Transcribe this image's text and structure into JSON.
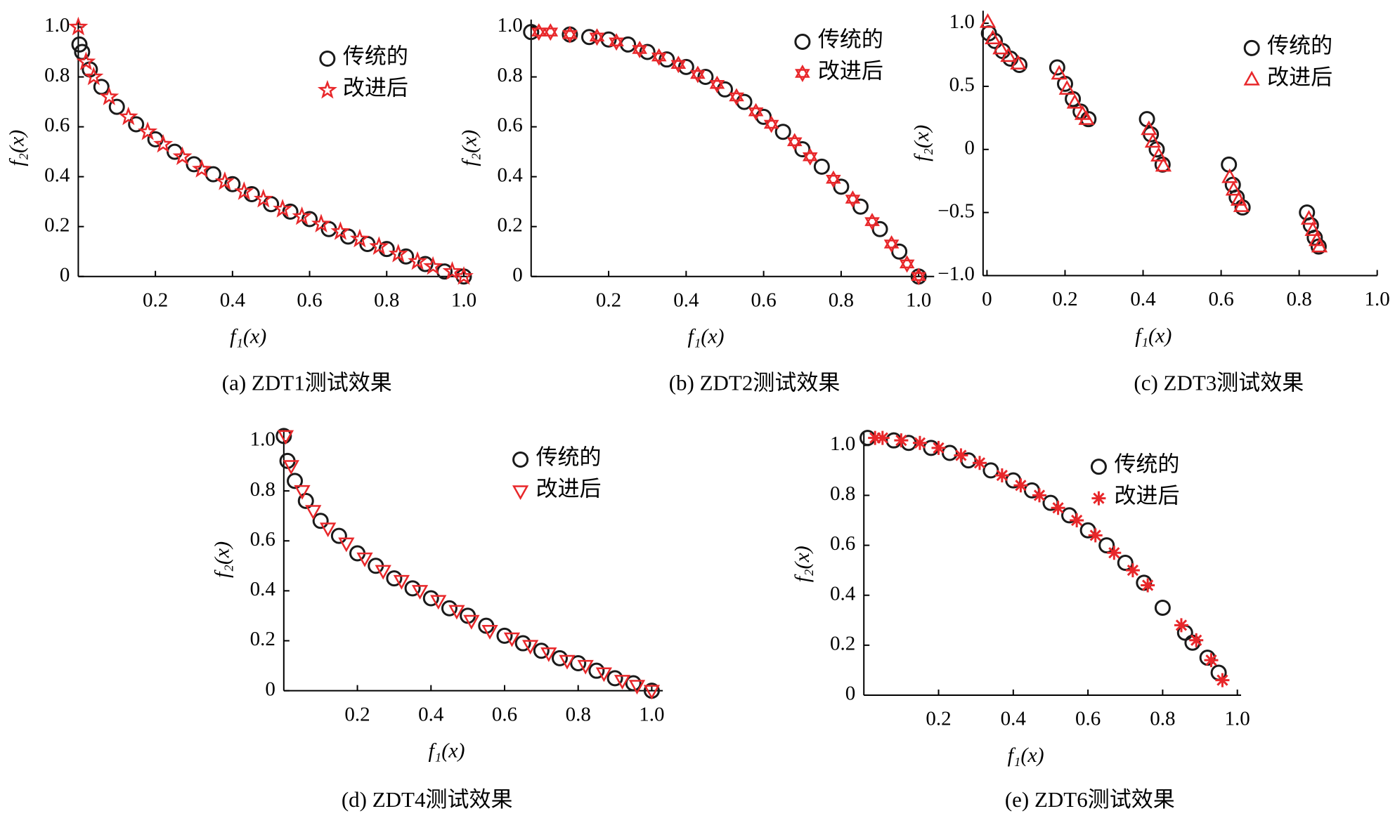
{
  "chart_data": [
    {
      "type": "scatter",
      "caption": "(a) ZDT1测试效果",
      "xlabel": "f₁(x)",
      "ylabel": "f₂(x)",
      "legend": "upper right",
      "xlim": [
        0,
        1.02
      ],
      "ylim": [
        0,
        1.03
      ],
      "xticks": [
        0.2,
        0.4,
        0.6,
        0.8,
        {
          "value": 1,
          "label": "1.0"
        }
      ],
      "yticks": [
        0,
        0.2,
        0.4,
        0.6,
        0.8,
        {
          "value": 1,
          "label": "1.0"
        }
      ],
      "series": [
        {
          "name": "传统的",
          "color": "#1a1a1a",
          "marker": "circle",
          "x": [
            0.003,
            0.01,
            0.03,
            0.06,
            0.1,
            0.15,
            0.2,
            0.25,
            0.3,
            0.35,
            0.4,
            0.45,
            0.5,
            0.55,
            0.6,
            0.65,
            0.7,
            0.75,
            0.8,
            0.85,
            0.9,
            0.95,
            1.0
          ],
          "values": [
            0.93,
            0.9,
            0.83,
            0.76,
            0.68,
            0.61,
            0.55,
            0.5,
            0.45,
            0.41,
            0.37,
            0.33,
            0.29,
            0.26,
            0.23,
            0.19,
            0.16,
            0.13,
            0.11,
            0.08,
            0.05,
            0.02,
            0
          ]
        },
        {
          "name": "改进后",
          "color": "#e8272a",
          "marker": "star",
          "x": [
            0,
            0.02,
            0.04,
            0.08,
            0.13,
            0.18,
            0.22,
            0.27,
            0.32,
            0.38,
            0.43,
            0.48,
            0.53,
            0.58,
            0.63,
            0.68,
            0.73,
            0.78,
            0.83,
            0.88,
            0.92,
            0.97,
            1.0
          ],
          "values": [
            1.0,
            0.86,
            0.8,
            0.72,
            0.64,
            0.58,
            0.53,
            0.48,
            0.43,
            0.38,
            0.34,
            0.31,
            0.27,
            0.24,
            0.21,
            0.18,
            0.15,
            0.12,
            0.09,
            0.06,
            0.04,
            0.02,
            0
          ]
        }
      ]
    },
    {
      "type": "scatter",
      "caption": "(b) ZDT2测试效果",
      "xlabel": "f₁(x)",
      "ylabel": "f₂(x)",
      "legend": "upper right",
      "xlim": [
        0,
        1.04
      ],
      "ylim": [
        0,
        1.03
      ],
      "xticks": [
        0.2,
        0.4,
        0.6,
        0.8,
        {
          "value": 1,
          "label": "1.0"
        }
      ],
      "yticks": [
        0,
        0.2,
        0.4,
        0.6,
        0.8,
        {
          "value": 1,
          "label": "1.0"
        }
      ],
      "series": [
        {
          "name": "传统的",
          "color": "#1a1a1a",
          "marker": "circle",
          "x": [
            0,
            0.1,
            0.15,
            0.2,
            0.25,
            0.3,
            0.35,
            0.4,
            0.45,
            0.5,
            0.55,
            0.6,
            0.65,
            0.7,
            0.75,
            0.8,
            0.85,
            0.9,
            0.95,
            1.0
          ],
          "values": [
            0.98,
            0.97,
            0.96,
            0.95,
            0.93,
            0.9,
            0.87,
            0.84,
            0.8,
            0.75,
            0.7,
            0.64,
            0.58,
            0.51,
            0.44,
            0.36,
            0.28,
            0.19,
            0.1,
            0
          ]
        },
        {
          "name": "改进后",
          "color": "#e8272a",
          "marker": "hexagram",
          "x": [
            0.02,
            0.05,
            0.1,
            0.17,
            0.22,
            0.28,
            0.33,
            0.38,
            0.43,
            0.48,
            0.53,
            0.58,
            0.62,
            0.68,
            0.72,
            0.78,
            0.83,
            0.88,
            0.93,
            0.97,
            1.0
          ],
          "values": [
            0.98,
            0.98,
            0.97,
            0.96,
            0.94,
            0.91,
            0.88,
            0.85,
            0.81,
            0.77,
            0.72,
            0.66,
            0.61,
            0.54,
            0.48,
            0.39,
            0.31,
            0.22,
            0.13,
            0.05,
            0
          ]
        }
      ]
    },
    {
      "type": "scatter",
      "caption": "(c) ZDT3测试效果",
      "xlabel": "f₁(x)",
      "ylabel": "f₂(x)",
      "legend": "upper right",
      "xlim": [
        -0.01,
        1.0
      ],
      "ylim": [
        -1,
        1.1
      ],
      "xticks": [
        0,
        0.2,
        0.4,
        0.6,
        0.8,
        {
          "value": 1,
          "label": "1.0"
        }
      ],
      "yticks": [
        {
          "value": -1,
          "label": "−1.0"
        },
        {
          "value": -0.5,
          "label": "−0.5"
        },
        0,
        0.5,
        {
          "value": 1,
          "label": "1.0"
        }
      ],
      "series": [
        {
          "name": "传统的",
          "color": "#1a1a1a",
          "marker": "circle",
          "x": [
            0.005,
            0.02,
            0.04,
            0.06,
            0.083,
            0.18,
            0.2,
            0.22,
            0.24,
            0.26,
            0.41,
            0.42,
            0.435,
            0.45,
            0.62,
            0.63,
            0.64,
            0.655,
            0.82,
            0.83,
            0.84,
            0.85
          ],
          "values": [
            0.92,
            0.86,
            0.78,
            0.72,
            0.67,
            0.65,
            0.52,
            0.4,
            0.3,
            0.24,
            0.24,
            0.12,
            0.0,
            -0.12,
            -0.12,
            -0.28,
            -0.38,
            -0.46,
            -0.5,
            -0.6,
            -0.7,
            -0.77
          ]
        },
        {
          "name": "改进后",
          "color": "#e8272a",
          "marker": "triangle",
          "x": [
            0.002,
            0.015,
            0.035,
            0.055,
            0.08,
            0.185,
            0.205,
            0.225,
            0.245,
            0.255,
            0.415,
            0.425,
            0.44,
            0.452,
            0.622,
            0.632,
            0.645,
            0.652,
            0.825,
            0.835,
            0.845,
            0.852
          ],
          "values": [
            1.01,
            0.88,
            0.8,
            0.74,
            0.68,
            0.6,
            0.48,
            0.37,
            0.28,
            0.24,
            0.16,
            0.06,
            -0.05,
            -0.13,
            -0.22,
            -0.32,
            -0.4,
            -0.45,
            -0.55,
            -0.64,
            -0.72,
            -0.77
          ]
        }
      ]
    },
    {
      "type": "scatter",
      "caption": "(d) ZDT4测试效果",
      "xlabel": "f₁(x)",
      "ylabel": "f₂(x)",
      "legend": "upper right",
      "xlim": [
        0,
        1.03
      ],
      "ylim": [
        0,
        1.05
      ],
      "xticks": [
        0.2,
        0.4,
        0.6,
        0.8,
        {
          "value": 1,
          "label": "1.0"
        }
      ],
      "yticks": [
        0,
        0.2,
        0.4,
        0.6,
        0.8,
        {
          "value": 1,
          "label": "1.0"
        }
      ],
      "series": [
        {
          "name": "传统的",
          "color": "#1a1a1a",
          "marker": "circle",
          "x": [
            0,
            0.01,
            0.03,
            0.06,
            0.1,
            0.15,
            0.2,
            0.25,
            0.3,
            0.35,
            0.4,
            0.45,
            0.5,
            0.55,
            0.6,
            0.65,
            0.7,
            0.75,
            0.8,
            0.85,
            0.9,
            0.95,
            1.0
          ],
          "values": [
            1.02,
            0.92,
            0.84,
            0.76,
            0.68,
            0.62,
            0.55,
            0.5,
            0.45,
            0.41,
            0.37,
            0.33,
            0.3,
            0.26,
            0.22,
            0.19,
            0.16,
            0.13,
            0.11,
            0.08,
            0.05,
            0.03,
            0
          ]
        },
        {
          "name": "改进后",
          "color": "#e8272a",
          "marker": "triangle-down",
          "x": [
            0.005,
            0.02,
            0.05,
            0.08,
            0.12,
            0.17,
            0.22,
            0.27,
            0.32,
            0.37,
            0.42,
            0.47,
            0.51,
            0.56,
            0.62,
            0.67,
            0.72,
            0.77,
            0.82,
            0.87,
            0.92,
            0.96,
            1.0
          ],
          "values": [
            1.02,
            0.9,
            0.8,
            0.72,
            0.65,
            0.59,
            0.53,
            0.48,
            0.44,
            0.4,
            0.36,
            0.32,
            0.28,
            0.24,
            0.21,
            0.18,
            0.15,
            0.12,
            0.1,
            0.07,
            0.04,
            0.02,
            0
          ]
        }
      ]
    },
    {
      "type": "scatter",
      "caption": "(e) ZDT6测试效果",
      "xlabel": "f₁(x)",
      "ylabel": "f₂(x)",
      "legend": "upper right",
      "xlim": [
        0,
        1.01
      ],
      "ylim": [
        0,
        1.05
      ],
      "xticks": [
        0.2,
        0.4,
        0.6,
        0.8,
        {
          "value": 1,
          "label": "1.0"
        }
      ],
      "yticks": [
        0,
        0.2,
        0.4,
        0.6,
        0.8,
        {
          "value": 1,
          "label": "1.0"
        }
      ],
      "series": [
        {
          "name": "传统的",
          "color": "#1a1a1a",
          "marker": "circle",
          "x": [
            0.01,
            0.08,
            0.12,
            0.18,
            0.23,
            0.28,
            0.34,
            0.4,
            0.45,
            0.5,
            0.55,
            0.6,
            0.65,
            0.7,
            0.75,
            0.8,
            0.86,
            0.88,
            0.92,
            0.95
          ],
          "values": [
            1.03,
            1.02,
            1.01,
            0.99,
            0.97,
            0.94,
            0.9,
            0.86,
            0.82,
            0.77,
            0.72,
            0.66,
            0.6,
            0.53,
            0.45,
            0.35,
            0.25,
            0.21,
            0.15,
            0.09
          ]
        },
        {
          "name": "改进后",
          "color": "#e8272a",
          "marker": "asterisk",
          "x": [
            0.03,
            0.05,
            0.1,
            0.15,
            0.2,
            0.26,
            0.31,
            0.37,
            0.42,
            0.47,
            0.52,
            0.57,
            0.62,
            0.67,
            0.72,
            0.76,
            0.85,
            0.89,
            0.93,
            0.96
          ],
          "values": [
            1.03,
            1.03,
            1.02,
            1.01,
            0.99,
            0.96,
            0.93,
            0.88,
            0.84,
            0.8,
            0.75,
            0.7,
            0.64,
            0.57,
            0.5,
            0.44,
            0.28,
            0.22,
            0.14,
            0.06
          ]
        }
      ]
    }
  ]
}
